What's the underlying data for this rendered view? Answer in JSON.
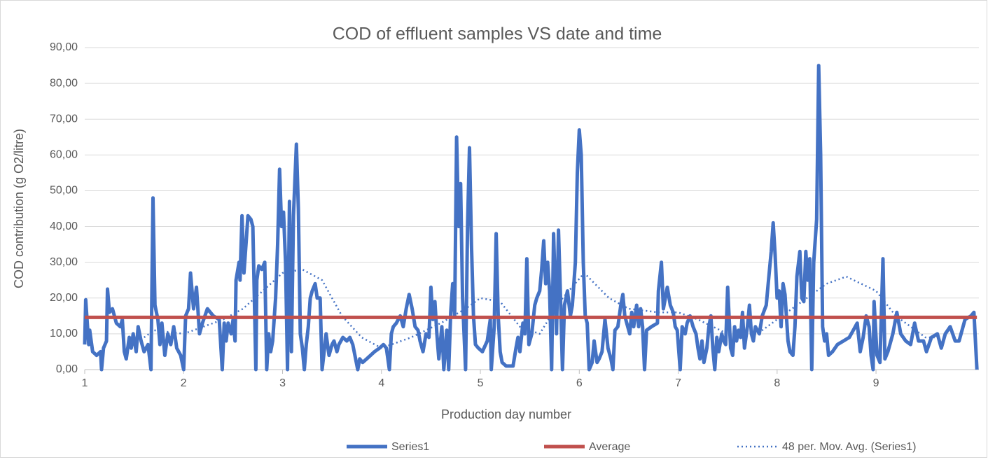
{
  "chart_data": {
    "type": "line",
    "title": "COD of effluent samples VS date and time",
    "x_label": "Production day number",
    "y_label": "COD contribution (g O2/litre)",
    "xlim": [
      1,
      10.04
    ],
    "xticks": [
      1,
      2,
      3,
      4,
      5,
      6,
      7,
      8,
      9
    ],
    "ylim": [
      0,
      90
    ],
    "yticks": [
      {
        "value": 0,
        "label": "0,00"
      },
      {
        "value": 10,
        "label": "10,00"
      },
      {
        "value": 20,
        "label": "20,00"
      },
      {
        "value": 30,
        "label": "30,00"
      },
      {
        "value": 40,
        "label": "40,00"
      },
      {
        "value": 50,
        "label": "50,00"
      },
      {
        "value": 60,
        "label": "60,00"
      },
      {
        "value": 70,
        "label": "70,00"
      },
      {
        "value": 80,
        "label": "80,00"
      },
      {
        "value": 90,
        "label": "90,00"
      }
    ],
    "grid": true,
    "legend": "bottom",
    "series": [
      {
        "name": "Series1",
        "color": "#4472c4",
        "line_style": "solid",
        "x": [
          1.0,
          1.01,
          1.04,
          1.05,
          1.08,
          1.12,
          1.16,
          1.17,
          1.19,
          1.22,
          1.23,
          1.25,
          1.28,
          1.32,
          1.36,
          1.38,
          1.4,
          1.42,
          1.45,
          1.47,
          1.49,
          1.52,
          1.54,
          1.57,
          1.6,
          1.64,
          1.67,
          1.69,
          1.71,
          1.74,
          1.76,
          1.78,
          1.81,
          1.84,
          1.87,
          1.9,
          1.93,
          1.97,
          2.0,
          2.02,
          2.05,
          2.07,
          2.1,
          2.13,
          2.16,
          2.19,
          2.24,
          2.3,
          2.36,
          2.39,
          2.41,
          2.43,
          2.45,
          2.48,
          2.5,
          2.52,
          2.53,
          2.56,
          2.57,
          2.59,
          2.61,
          2.63,
          2.65,
          2.68,
          2.7,
          2.73,
          2.74,
          2.76,
          2.79,
          2.82,
          2.84,
          2.86,
          2.88,
          2.9,
          2.93,
          2.95,
          2.97,
          2.99,
          3.01,
          3.03,
          3.05,
          3.07,
          3.09,
          3.11,
          3.14,
          3.16,
          3.18,
          3.2,
          3.22,
          3.24,
          3.26,
          3.28,
          3.3,
          3.33,
          3.35,
          3.38,
          3.4,
          3.42,
          3.44,
          3.47,
          3.5,
          3.52,
          3.55,
          3.57,
          3.61,
          3.65,
          3.68,
          3.71,
          3.76,
          3.78,
          3.81,
          3.85,
          3.89,
          3.93,
          3.98,
          4.02,
          4.05,
          4.08,
          4.1,
          4.12,
          4.15,
          4.19,
          4.22,
          4.25,
          4.28,
          4.31,
          4.34,
          4.37,
          4.39,
          4.42,
          4.45,
          4.48,
          4.5,
          4.52,
          4.54,
          4.56,
          4.58,
          4.61,
          4.63,
          4.66,
          4.68,
          4.7,
          4.72,
          4.74,
          4.76,
          4.78,
          4.8,
          4.82,
          4.85,
          4.87,
          4.89,
          4.91,
          4.93,
          4.95,
          4.98,
          5.02,
          5.07,
          5.1,
          5.11,
          5.14,
          5.16,
          5.18,
          5.2,
          5.22,
          5.26,
          5.33,
          5.36,
          5.38,
          5.4,
          5.43,
          5.45,
          5.47,
          5.49,
          5.52,
          5.55,
          5.57,
          5.6,
          5.62,
          5.64,
          5.66,
          5.68,
          5.7,
          5.72,
          5.74,
          5.77,
          5.79,
          5.81,
          5.83,
          5.85,
          5.88,
          5.91,
          5.93,
          5.96,
          5.98,
          6.0,
          6.02,
          6.04,
          6.06,
          6.08,
          6.1,
          6.13,
          6.15,
          6.18,
          6.2,
          6.23,
          6.26,
          6.29,
          6.32,
          6.34,
          6.36,
          6.39,
          6.42,
          6.44,
          6.46,
          6.49,
          6.51,
          6.53,
          6.55,
          6.58,
          6.6,
          6.62,
          6.64,
          6.66,
          6.68,
          6.73,
          6.79,
          6.8,
          6.83,
          6.85,
          6.87,
          6.89,
          6.92,
          6.95,
          6.97,
          6.99,
          7.02,
          7.04,
          7.07,
          7.09,
          7.12,
          7.15,
          7.18,
          7.2,
          7.22,
          7.24,
          7.26,
          7.29,
          7.31,
          7.33,
          7.35,
          7.37,
          7.39,
          7.41,
          7.44,
          7.46,
          7.48,
          7.5,
          7.53,
          7.55,
          7.57,
          7.59,
          7.61,
          7.63,
          7.65,
          7.67,
          7.7,
          7.72,
          7.74,
          7.76,
          7.78,
          7.82,
          7.85,
          7.89,
          7.91,
          7.94,
          7.96,
          7.98,
          8.0,
          8.02,
          8.04,
          8.06,
          8.08,
          8.11,
          8.13,
          8.16,
          8.18,
          8.2,
          8.23,
          8.25,
          8.27,
          8.29,
          8.31,
          8.33,
          8.35,
          8.37,
          8.4,
          8.42,
          8.44,
          8.46,
          8.48,
          8.5,
          8.52,
          8.56,
          8.61,
          8.67,
          8.73,
          8.77,
          8.81,
          8.84,
          8.87,
          8.9,
          8.93,
          8.95,
          8.97,
          8.98,
          9.01,
          9.04,
          9.07,
          9.09,
          9.12,
          9.17,
          9.21,
          9.25,
          9.3,
          9.35,
          9.39,
          9.43,
          9.48,
          9.51,
          9.56,
          9.62,
          9.66,
          9.7,
          9.75,
          9.8,
          9.84,
          9.9,
          9.96,
          9.99,
          10.02
        ],
        "values": [
          7,
          19.5,
          7,
          11,
          5,
          4,
          5,
          0,
          6,
          8,
          22.5,
          16,
          17,
          13,
          12,
          14,
          5,
          3,
          9,
          6,
          10,
          5,
          12,
          8,
          5,
          7,
          0,
          48,
          18,
          14,
          7,
          13,
          4,
          10,
          7,
          12,
          6,
          4,
          0,
          15,
          17,
          27,
          17,
          23,
          10,
          13,
          17,
          15,
          14,
          0,
          13,
          8,
          13,
          10,
          14,
          8,
          25,
          30,
          25,
          43,
          27,
          35,
          43,
          42,
          40,
          0,
          25,
          29,
          28,
          30,
          0,
          10,
          5,
          8,
          20,
          35,
          56,
          40,
          44,
          30,
          0,
          47,
          5,
          43,
          63,
          45,
          10,
          6,
          0,
          7,
          12,
          20,
          22,
          24,
          20,
          20,
          0,
          5,
          10,
          4,
          7,
          8,
          5,
          7,
          9,
          8,
          9,
          7,
          0,
          3,
          2,
          3,
          4,
          5,
          6,
          7,
          6,
          0,
          10,
          12,
          13,
          15,
          12,
          17,
          21,
          17,
          12,
          11,
          8,
          5,
          10,
          9,
          23,
          14,
          19,
          10,
          3,
          12,
          0,
          11,
          0,
          16,
          24,
          15,
          65,
          40,
          52,
          20,
          0,
          40,
          62,
          35,
          15,
          7,
          6,
          5,
          8,
          14,
          0,
          12,
          38,
          15,
          5,
          2,
          1,
          1,
          6,
          9,
          5,
          13,
          10,
          31,
          7,
          10,
          18,
          20,
          22,
          28,
          36,
          24,
          30,
          22,
          0,
          38,
          10,
          39,
          20,
          0,
          18,
          22,
          15,
          18,
          30,
          55,
          67,
          60,
          30,
          15,
          13,
          0,
          2,
          8,
          2,
          3,
          5,
          14,
          6,
          3,
          0,
          11,
          12,
          18,
          21,
          15,
          12,
          10,
          16,
          12,
          18,
          12,
          17,
          12,
          0,
          11,
          12,
          13,
          22,
          30,
          17,
          20,
          23,
          18,
          16,
          12,
          11,
          0,
          12,
          10,
          13,
          15,
          12,
          10,
          6,
          3,
          8,
          2,
          6,
          12,
          15,
          6,
          0,
          9,
          5,
          10,
          8,
          7,
          23,
          6,
          4,
          12,
          8,
          11,
          9,
          16,
          6,
          12,
          18,
          10,
          8,
          12,
          10,
          15,
          18,
          24,
          33,
          41,
          32,
          20,
          22,
          12,
          24,
          21,
          8,
          5,
          4,
          12,
          26,
          33,
          20,
          19,
          33,
          25,
          31,
          0,
          30,
          42,
          85,
          60,
          12,
          8,
          10,
          4,
          5,
          7,
          8,
          9,
          11,
          13,
          5,
          9,
          15,
          12,
          4,
          0,
          19,
          4,
          2,
          31,
          3,
          5,
          10,
          16,
          10,
          8,
          7,
          13,
          8,
          8,
          5,
          9,
          10,
          6,
          10,
          12,
          8,
          8,
          14,
          15,
          16,
          0
        ]
      },
      {
        "name": "Average",
        "color": "#c0504d",
        "line_style": "solid",
        "x": [
          1.0,
          10.02
        ],
        "values": [
          14.6,
          14.6
        ]
      },
      {
        "name": "48 per. Mov. Avg. (Series1)",
        "color": "#4472c4",
        "line_style": "dotted",
        "x": [
          1.6,
          1.7,
          2.0,
          2.2,
          2.4,
          2.6,
          2.8,
          3.0,
          3.2,
          3.4,
          3.6,
          3.8,
          4.0,
          4.3,
          4.6,
          4.85,
          5.0,
          5.2,
          5.4,
          5.6,
          5.8,
          6.05,
          6.3,
          6.5,
          6.8,
          7.0,
          7.2,
          7.5,
          7.8,
          8.0,
          8.2,
          8.5,
          8.7,
          9.0,
          9.2,
          9.5,
          9.65
        ],
        "values": [
          9,
          11,
          10,
          12,
          14,
          17,
          22,
          27,
          28,
          25,
          15,
          9,
          6,
          9,
          13,
          17,
          20,
          19,
          12,
          10,
          19,
          27,
          20,
          17,
          16,
          16,
          14,
          10,
          10,
          14,
          18,
          24,
          26,
          22,
          15,
          9,
          9
        ]
      }
    ]
  }
}
